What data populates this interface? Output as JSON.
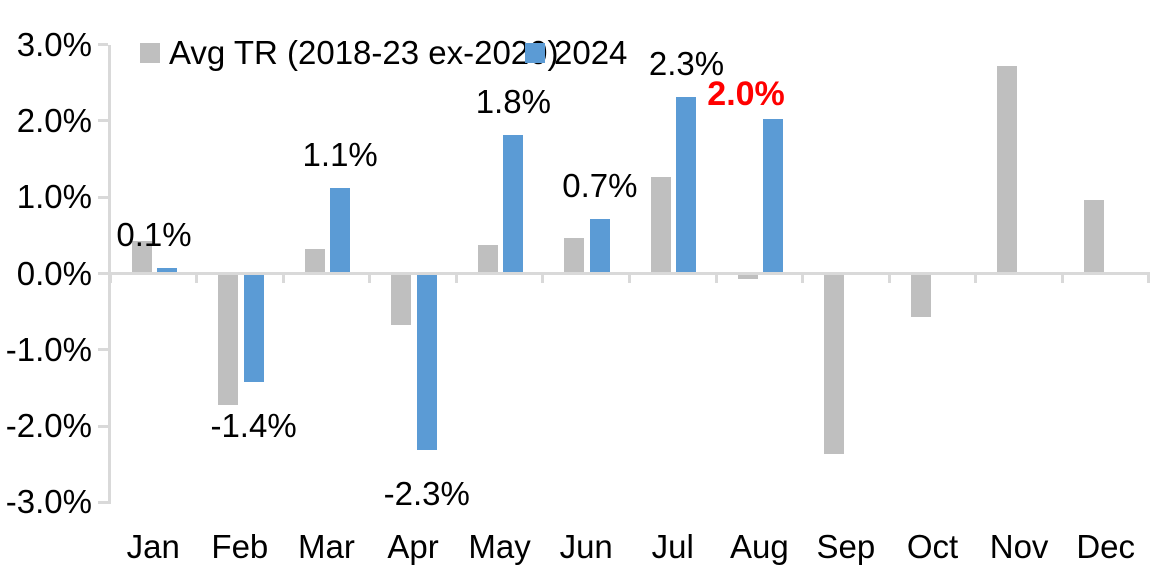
{
  "colors": {
    "avg_tr_bar": "#bfbfbf",
    "y2024_bar": "#5b9bd5",
    "highlight_label": "#ff0000",
    "axis": "#d9d9d9",
    "text": "#000000",
    "background": "#ffffff"
  },
  "legend": {
    "series1_label": "Avg TR (2018-23 ex-2020)",
    "series2_label": "2024"
  },
  "chart_data": {
    "type": "bar",
    "title": "",
    "xlabel": "",
    "ylabel": "",
    "categories": [
      "Jan",
      "Feb",
      "Mar",
      "Apr",
      "May",
      "Jun",
      "Jul",
      "Aug",
      "Sep",
      "Oct",
      "Nov",
      "Dec"
    ],
    "series": [
      {
        "name": "Avg TR (2018-23 ex-2020)",
        "color": "#bfbfbf",
        "values": [
          0.4,
          -1.7,
          0.3,
          -0.65,
          0.35,
          0.45,
          1.25,
          -0.05,
          -2.35,
          -0.55,
          2.7,
          0.95
        ]
      },
      {
        "name": "2024",
        "color": "#5b9bd5",
        "values": [
          0.05,
          -1.4,
          1.1,
          -2.3,
          1.8,
          0.7,
          2.3,
          2.0,
          null,
          null,
          null,
          null
        ],
        "data_labels": [
          {
            "text": "0.1%",
            "emphasis": false
          },
          {
            "text": "-1.4%",
            "emphasis": false
          },
          {
            "text": "1.1%",
            "emphasis": false
          },
          {
            "text": "-2.3%",
            "emphasis": false
          },
          {
            "text": "1.8%",
            "emphasis": false
          },
          {
            "text": "0.7%",
            "emphasis": false
          },
          {
            "text": "2.3%",
            "emphasis": false
          },
          {
            "text": "2.0%",
            "emphasis": true
          },
          null,
          null,
          null,
          null
        ]
      }
    ],
    "y_axis": {
      "unit": "%",
      "min": -3.0,
      "max": 3.0,
      "tick_step": 1.0,
      "tick_labels": [
        "3.0%",
        "2.0%",
        "1.0%",
        "0.0%",
        "-1.0%",
        "-2.0%",
        "-3.0%"
      ],
      "tick_values": [
        3,
        2,
        1,
        0,
        -1,
        -2,
        -3
      ]
    },
    "gridlines": false,
    "legend_position": "top-left"
  }
}
